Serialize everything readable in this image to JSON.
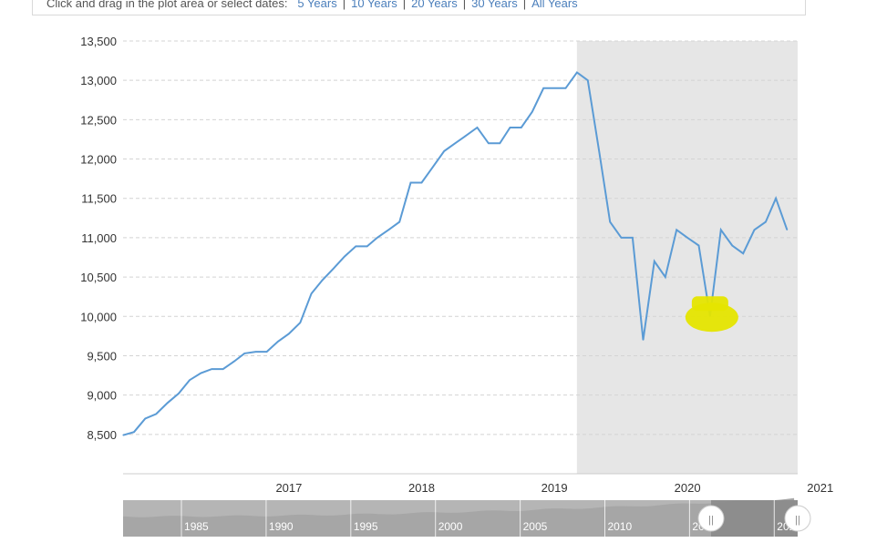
{
  "toolbar": {
    "prompt": "Click and drag in the plot area or select dates:",
    "ranges": [
      "5 Years",
      "10 Years",
      "20 Years",
      "30 Years",
      "All Years"
    ]
  },
  "colors": {
    "line": "#5b9bd5",
    "recession_band": "#e6e6e6",
    "grid": "#d4d4d4",
    "highlight": "#e5e500",
    "navigator_bg": "#b5b5b5",
    "navigator_selected": "#888888"
  },
  "chart_data": {
    "type": "line",
    "title": "",
    "xlabel": "",
    "ylabel": "",
    "ylim": [
      8000,
      13500
    ],
    "y_ticks": [
      "8,500",
      "9,000",
      "9,500",
      "10,000",
      "10,500",
      "11,000",
      "11,500",
      "12,000",
      "12,500",
      "13,000",
      "13,500"
    ],
    "x_ticks": [
      "2017",
      "2018",
      "2019",
      "2020",
      "2021"
    ],
    "grid": "horizontal dashed",
    "shaded_region": {
      "start": "2019-09-01",
      "end": "2021-04-30"
    },
    "series": [
      {
        "x": [
          "2016-04-01",
          "2016-05-01",
          "2016-06-01",
          "2016-07-01",
          "2016-08-01",
          "2016-09-01",
          "2016-10-01",
          "2016-11-01",
          "2016-12-01",
          "2017-01-01",
          "2017-02-01",
          "2017-03-01",
          "2017-04-01",
          "2017-05-01",
          "2017-06-01",
          "2017-07-01",
          "2017-08-01",
          "2017-09-01",
          "2017-10-01",
          "2017-11-01",
          "2017-12-01",
          "2018-01-01",
          "2018-02-01",
          "2018-03-01",
          "2018-04-01",
          "2018-05-01",
          "2018-06-01",
          "2018-07-01",
          "2018-08-01",
          "2018-09-01",
          "2018-10-01",
          "2018-11-01",
          "2018-12-01",
          "2019-01-01",
          "2019-02-01",
          "2019-03-01",
          "2019-04-01",
          "2019-05-01",
          "2019-06-01",
          "2019-07-01",
          "2019-08-01",
          "2019-09-01",
          "2019-10-01",
          "2019-11-01",
          "2019-12-01",
          "2020-01-01",
          "2020-02-01",
          "2020-03-01",
          "2020-04-01",
          "2020-05-01",
          "2020-06-01",
          "2020-07-01",
          "2020-08-01",
          "2020-09-01",
          "2020-10-01",
          "2020-11-01",
          "2020-12-01",
          "2021-01-01",
          "2021-02-01",
          "2021-03-01",
          "2021-04-01"
        ],
        "y": [
          8490,
          8530,
          8700,
          8760,
          8900,
          9020,
          9190,
          9280,
          9330,
          9330,
          9430,
          9530,
          9550,
          9550,
          9680,
          9780,
          9920,
          10290,
          10460,
          10610,
          10760,
          10890,
          10890,
          11000,
          11100,
          11200,
          11700,
          11700,
          11900,
          12100,
          12200,
          12300,
          12400,
          12200,
          12200,
          12400,
          12400,
          12600,
          12900,
          12900,
          12900,
          13100,
          13000,
          12100,
          11200,
          11000,
          11000,
          9700,
          10700,
          10500,
          11100,
          11000,
          10900,
          10000,
          11100,
          10900,
          10800,
          11100,
          11200,
          11500,
          11100
        ]
      }
    ]
  },
  "navigator": {
    "labels": [
      "1985",
      "1990",
      "1995",
      "2000",
      "2005",
      "2010",
      "2015",
      "2020"
    ],
    "handle_left_glyph": "||",
    "handle_right_glyph": "||"
  }
}
